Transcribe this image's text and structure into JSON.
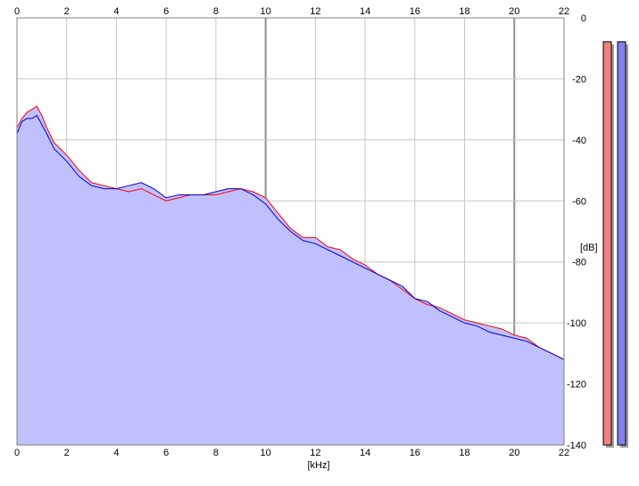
{
  "chart_data": {
    "type": "area",
    "title": "",
    "xlabel": "[kHz]",
    "ylabel": "[dB]",
    "xlim": [
      0,
      22
    ],
    "ylim": [
      -140,
      0
    ],
    "x_ticks": [
      0,
      2,
      4,
      6,
      8,
      10,
      12,
      14,
      16,
      18,
      20,
      22
    ],
    "x_tick_labels": [
      "0",
      "2",
      "4",
      "6",
      "8",
      "10",
      "12",
      "14",
      "16",
      "18",
      "20",
      "22"
    ],
    "y_ticks": [
      0,
      -20,
      -40,
      -60,
      -80,
      -100,
      -120,
      -140
    ],
    "y_tick_labels": [
      "0",
      "-20",
      "-40",
      "-60",
      "-80",
      "-100",
      "-120",
      "-140"
    ],
    "grid": true,
    "legend": "none",
    "colors": {
      "red_series": "#ff0000",
      "blue_series": "#0000cc",
      "fill": "#c0c0ff",
      "grid_light": "#c8c8c8",
      "grid_major": "#909090",
      "meter_left": "#f08080",
      "meter_right": "#8080f0"
    },
    "series": [
      {
        "x": [
          0,
          0.2,
          0.4,
          0.6,
          0.8,
          1.0,
          1.2,
          1.5,
          2.0,
          2.5,
          3.0,
          3.5,
          4.0,
          4.5,
          5.0,
          5.5,
          6.0,
          6.5,
          7.0,
          7.5,
          8.0,
          8.5,
          9.0,
          9.5,
          10.0,
          10.5,
          11.0,
          11.5,
          12.0,
          12.5,
          13.0,
          13.5,
          14.0,
          14.5,
          15.0,
          15.5,
          16.0,
          16.5,
          17.0,
          17.5,
          18.0,
          18.5,
          19.0,
          19.5,
          20.0,
          20.5,
          21.0,
          21.5,
          22.0
        ],
        "values": [
          -36,
          -33,
          -31,
          -30,
          -29,
          -32,
          -36,
          -41,
          -45,
          -50,
          -54,
          -55,
          -56,
          -57,
          -56,
          -58,
          -60,
          -59,
          -58,
          -58,
          -58,
          -57,
          -56,
          -57,
          -59,
          -64,
          -69,
          -72,
          -72,
          -75,
          -76,
          -79,
          -81,
          -84,
          -86,
          -89,
          -92,
          -94,
          -95,
          -97,
          -99,
          -100,
          -101,
          -102,
          -104,
          -105,
          -108,
          -110,
          -112
        ]
      },
      {
        "x": [
          0,
          0.2,
          0.4,
          0.6,
          0.8,
          1.0,
          1.2,
          1.5,
          2.0,
          2.5,
          3.0,
          3.5,
          4.0,
          4.5,
          5.0,
          5.5,
          6.0,
          6.5,
          7.0,
          7.5,
          8.0,
          8.5,
          9.0,
          9.5,
          10.0,
          10.5,
          11.0,
          11.5,
          12.0,
          12.5,
          13.0,
          13.5,
          14.0,
          14.5,
          15.0,
          15.5,
          16.0,
          16.5,
          17.0,
          17.5,
          18.0,
          18.5,
          19.0,
          19.5,
          20.0,
          20.5,
          21.0,
          21.5,
          22.0
        ],
        "values": [
          -38,
          -34,
          -33,
          -33,
          -32,
          -35,
          -38,
          -43,
          -47,
          -52,
          -55,
          -56,
          -56,
          -55,
          -54,
          -56,
          -59,
          -58,
          -58,
          -58,
          -57,
          -56,
          -56,
          -58,
          -61,
          -66,
          -70,
          -73,
          -74,
          -76,
          -78,
          -80,
          -82,
          -84,
          -86,
          -88,
          -92,
          -93,
          -96,
          -98,
          -100,
          -101,
          -103,
          -104,
          -105,
          -106,
          -108,
          -110,
          -112
        ]
      }
    ],
    "meters": [
      -2,
      -2
    ]
  }
}
